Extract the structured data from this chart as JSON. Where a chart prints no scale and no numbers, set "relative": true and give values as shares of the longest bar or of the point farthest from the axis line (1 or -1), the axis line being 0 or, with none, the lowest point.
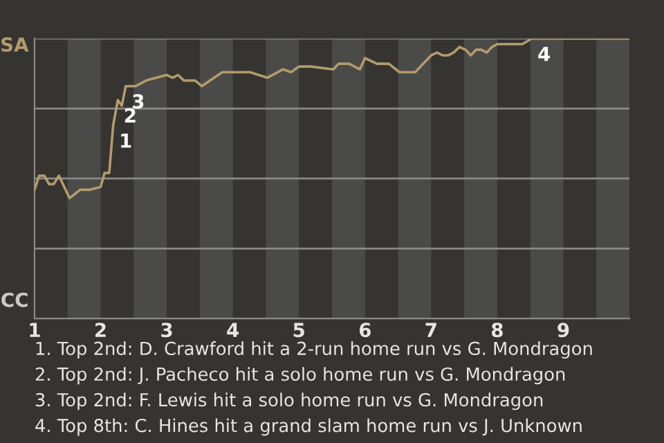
{
  "chart_data": {
    "type": "line",
    "relative": true,
    "x": [
      1.0,
      1.07,
      1.15,
      1.22,
      1.29,
      1.37,
      1.53,
      1.69,
      1.84,
      2.0,
      2.06,
      2.13,
      2.19,
      2.26,
      2.32,
      2.38,
      2.53,
      2.69,
      3.0,
      3.09,
      3.17,
      3.26,
      3.43,
      3.53,
      3.84,
      4.0,
      4.26,
      4.39,
      4.52,
      4.76,
      4.88,
      5.0,
      5.18,
      5.52,
      5.6,
      5.76,
      5.92,
      6.0,
      6.18,
      6.36,
      6.52,
      6.76,
      6.88,
      7.0,
      7.09,
      7.17,
      7.26,
      7.34,
      7.43,
      7.52,
      7.6,
      7.68,
      7.76,
      7.84,
      7.92,
      8.0,
      8.38,
      8.45,
      8.52,
      9.0,
      9.52,
      10.0
    ],
    "series": [
      {
        "color": "#b39b6b",
        "values": [
          0.46,
          0.51,
          0.51,
          0.48,
          0.48,
          0.51,
          0.43,
          0.46,
          0.46,
          0.47,
          0.52,
          0.52,
          0.69,
          0.78,
          0.76,
          0.83,
          0.83,
          0.85,
          0.87,
          0.86,
          0.87,
          0.85,
          0.85,
          0.83,
          0.88,
          0.88,
          0.88,
          0.87,
          0.86,
          0.89,
          0.88,
          0.9,
          0.9,
          0.89,
          0.91,
          0.91,
          0.89,
          0.93,
          0.91,
          0.91,
          0.88,
          0.88,
          0.91,
          0.94,
          0.95,
          0.94,
          0.94,
          0.95,
          0.97,
          0.96,
          0.94,
          0.96,
          0.96,
          0.95,
          0.97,
          0.98,
          0.98,
          0.99,
          1,
          1,
          1,
          1
        ]
      }
    ],
    "xlim": [
      1,
      10
    ],
    "xticks": [
      1,
      2,
      3,
      4,
      5,
      6,
      7,
      8,
      9
    ],
    "grid": "y",
    "legend": false,
    "marker": "none",
    "line_style": "solid",
    "bands": [
      {
        "axis": "x",
        "from": 1.5,
        "to": 2,
        "color": "#4a4a48"
      },
      {
        "axis": "x",
        "from": 2.5,
        "to": 3,
        "color": "#4a4a48"
      },
      {
        "axis": "x",
        "from": 3.5,
        "to": 4,
        "color": "#4a4a48"
      },
      {
        "axis": "x",
        "from": 4.5,
        "to": 5,
        "color": "#4a4a48"
      },
      {
        "axis": "x",
        "from": 5.5,
        "to": 6,
        "color": "#4a4a48"
      },
      {
        "axis": "x",
        "from": 6.5,
        "to": 7,
        "color": "#4a4a48"
      },
      {
        "axis": "x",
        "from": 7.5,
        "to": 8,
        "color": "#4a4a48"
      },
      {
        "axis": "x",
        "from": 8.5,
        "to": 9,
        "color": "#4a4a48"
      },
      {
        "axis": "x",
        "from": 9.5,
        "to": 10,
        "color": "#4a4a48"
      }
    ],
    "annotations": [
      {
        "text": "1",
        "x": 2.19,
        "y": 0.69
      },
      {
        "text": "2",
        "x": 2.26,
        "y": 0.78
      },
      {
        "text": "3",
        "x": 2.38,
        "y": 0.83
      },
      {
        "text": "4",
        "x": 8.52,
        "y": 1
      },
      "SA",
      "CC",
      "1. Top 2nd: D. Crawford hit a 2-run home run vs G. Mondragon",
      "2. Top 2nd: J. Pacheco hit a solo home run vs G. Mondragon",
      "3. Top 2nd: F. Lewis hit a solo home run vs G. Mondragon",
      "4. Top 8th: C. Hines hit a grand slam home run vs J. Unknown"
    ]
  }
}
